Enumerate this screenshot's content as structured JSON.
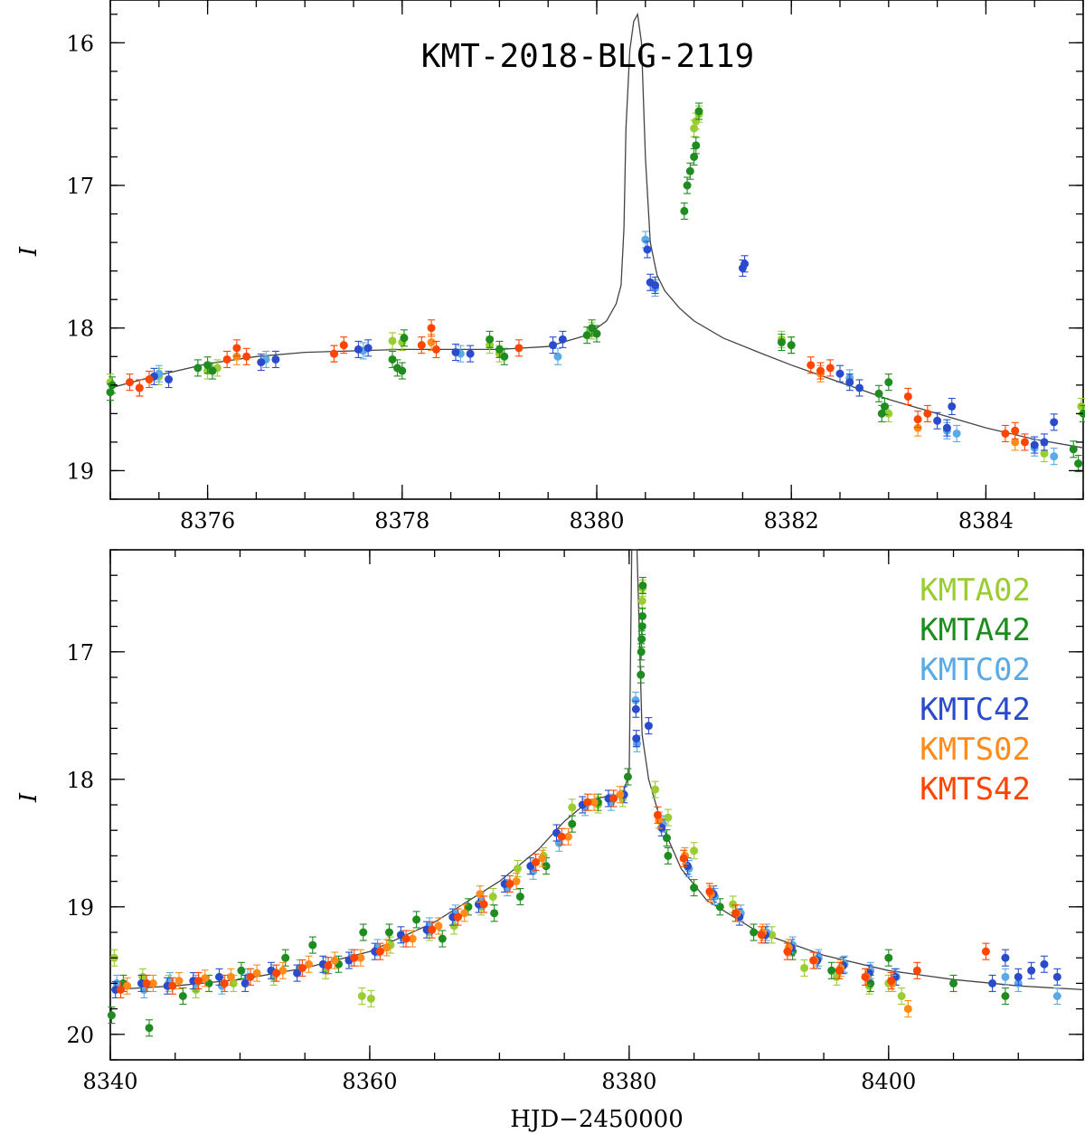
{
  "chart_data": [
    {
      "type": "scatter",
      "title": "KMT-2018-BLG-2119",
      "xlabel": "",
      "ylabel": "I",
      "xlim": [
        8375,
        8385
      ],
      "ylim": [
        19.2,
        15.7
      ],
      "x_ticks": [
        "8376",
        "8378",
        "8380",
        "8382",
        "8384"
      ],
      "y_ticks": [
        "16",
        "17",
        "18",
        "19"
      ],
      "x_tick_values": [
        8376,
        8378,
        8380,
        8382,
        8384
      ],
      "y_tick_values": [
        16,
        17,
        18,
        19
      ],
      "model": {
        "label": "model light curve",
        "x": [
          8375.0,
          8375.5,
          8376.0,
          8376.5,
          8377.0,
          8377.5,
          8378.0,
          8378.5,
          8379.0,
          8379.5,
          8379.9,
          8380.1,
          8380.2,
          8380.25,
          8380.28,
          8380.3,
          8380.34,
          8380.38,
          8380.42,
          8380.46,
          8380.5,
          8380.55,
          8380.62,
          8380.7,
          8380.85,
          8381.0,
          8381.3,
          8381.7,
          8382.0,
          8382.5,
          8383.0,
          8383.5,
          8384.0,
          8384.5,
          8385.0
        ],
        "y": [
          18.42,
          18.33,
          18.25,
          18.2,
          18.17,
          18.16,
          18.15,
          18.15,
          18.15,
          18.13,
          18.05,
          17.95,
          17.83,
          17.7,
          17.3,
          16.6,
          16.05,
          15.85,
          15.8,
          16.0,
          16.8,
          17.4,
          17.63,
          17.74,
          17.86,
          17.95,
          18.07,
          18.18,
          18.26,
          18.38,
          18.5,
          18.6,
          18.7,
          18.78,
          18.84
        ]
      },
      "series": [
        {
          "name": "KMTA02",
          "color": "#9acd32",
          "x": [
            8375.0,
            8375.5,
            8376.0,
            8376.1,
            8377.9,
            8378.0,
            8378.9,
            8379.0,
            8379.95,
            8381.0,
            8381.02,
            8381.05,
            8381.9,
            8382.0,
            8383.0,
            8384.6,
            8384.98
          ],
          "y": [
            18.38,
            18.34,
            18.3,
            18.28,
            18.09,
            18.1,
            18.12,
            18.18,
            18.02,
            16.6,
            16.55,
            16.5,
            18.08,
            18.12,
            18.6,
            18.88,
            18.55
          ]
        },
        {
          "name": "KMTA42",
          "color": "#1e8c1e",
          "x": [
            8375.0,
            8375.02,
            8375.9,
            8376.0,
            8376.05,
            8377.9,
            8377.95,
            8378.0,
            8378.02,
            8378.9,
            8379.0,
            8379.05,
            8379.9,
            8379.95,
            8380.0,
            8380.9,
            8380.93,
            8380.96,
            8381.0,
            8381.02,
            8381.05,
            8381.9,
            8382.0,
            8382.9,
            8382.93,
            8382.96,
            8383.0,
            8384.9,
            8384.95,
            8385.0
          ],
          "y": [
            18.45,
            18.4,
            18.28,
            18.26,
            18.3,
            18.22,
            18.28,
            18.3,
            18.07,
            18.08,
            18.15,
            18.2,
            18.05,
            18.0,
            18.04,
            17.18,
            17.0,
            16.9,
            16.8,
            16.72,
            16.48,
            18.1,
            18.12,
            18.46,
            18.6,
            18.55,
            18.38,
            18.85,
            18.95,
            18.6
          ]
        },
        {
          "name": "KMTC02",
          "color": "#5aaae6",
          "x": [
            8375.5,
            8376.6,
            8377.6,
            8378.6,
            8379.6,
            8380.5,
            8380.6,
            8382.6,
            8383.6,
            8383.7,
            8384.5,
            8384.7
          ],
          "y": [
            18.32,
            18.22,
            18.16,
            18.18,
            18.2,
            17.38,
            17.72,
            18.35,
            18.72,
            18.74,
            18.84,
            18.9
          ]
        },
        {
          "name": "KMTC42",
          "color": "#2a4ccc",
          "x": [
            8375.45,
            8375.6,
            8376.55,
            8376.7,
            8377.55,
            8377.65,
            8378.55,
            8378.7,
            8379.55,
            8379.65,
            8380.52,
            8380.55,
            8380.6,
            8381.5,
            8381.52,
            8382.5,
            8382.6,
            8382.7,
            8383.5,
            8383.6,
            8383.65,
            8384.5,
            8384.6,
            8384.7
          ],
          "y": [
            18.34,
            18.36,
            18.24,
            18.22,
            18.15,
            18.14,
            18.17,
            18.18,
            18.12,
            18.08,
            17.45,
            17.68,
            17.7,
            17.58,
            17.55,
            18.32,
            18.38,
            18.42,
            18.65,
            18.7,
            18.55,
            18.82,
            18.8,
            18.66
          ]
        },
        {
          "name": "KMTS02",
          "color": "#ff8c1a",
          "x": [
            8375.3,
            8376.3,
            8377.3,
            8378.3,
            8382.3,
            8383.3,
            8384.3
          ],
          "y": [
            18.42,
            18.2,
            18.18,
            18.1,
            18.32,
            18.7,
            18.8
          ]
        },
        {
          "name": "KMTS42",
          "color": "#ff4500",
          "x": [
            8375.2,
            8375.3,
            8375.4,
            8376.2,
            8376.3,
            8376.4,
            8377.3,
            8377.4,
            8378.2,
            8378.3,
            8378.35,
            8379.2,
            8382.2,
            8382.3,
            8382.4,
            8383.2,
            8383.3,
            8383.4,
            8384.2,
            8384.3,
            8384.4
          ],
          "y": [
            18.38,
            18.42,
            18.36,
            18.22,
            18.14,
            18.2,
            18.18,
            18.12,
            18.12,
            18.0,
            18.15,
            18.14,
            18.26,
            18.3,
            18.28,
            18.48,
            18.64,
            18.6,
            18.74,
            18.72,
            18.8
          ]
        }
      ]
    },
    {
      "type": "scatter",
      "title": "",
      "xlabel": "HJD−2450000",
      "ylabel": "I",
      "xlim": [
        8340,
        8415
      ],
      "ylim": [
        20.2,
        16.2
      ],
      "x_ticks": [
        "8340",
        "8360",
        "8380",
        "8400"
      ],
      "y_ticks": [
        "17",
        "18",
        "19",
        "20"
      ],
      "x_tick_values": [
        8340,
        8360,
        8380,
        8400
      ],
      "y_tick_values": [
        17,
        18,
        19,
        20
      ],
      "model": {
        "label": "model light curve",
        "x": [
          8340,
          8345,
          8350,
          8355,
          8360,
          8365,
          8370,
          8373,
          8375,
          8377,
          8378.5,
          8379.5,
          8380.0,
          8380.2,
          8380.4,
          8380.6,
          8380.8,
          8381.0,
          8381.5,
          8382.5,
          8384,
          8386,
          8390,
          8395,
          8400,
          8405,
          8410,
          8415
        ],
        "y": [
          19.65,
          19.62,
          19.57,
          19.48,
          19.35,
          19.12,
          18.8,
          18.55,
          18.33,
          18.16,
          18.13,
          18.12,
          17.95,
          16.2,
          16.2,
          16.2,
          16.9,
          17.65,
          18.0,
          18.35,
          18.7,
          18.95,
          19.2,
          19.38,
          19.5,
          19.57,
          19.62,
          19.65
        ]
      },
      "series": [
        {
          "name": "KMTA02",
          "color": "#9acd32",
          "x": [
            8340.3,
            8342.5,
            8344.5,
            8346.6,
            8349.5,
            8352.6,
            8354.6,
            8356.6,
            8359.4,
            8360.1,
            8361.6,
            8364.6,
            8366.5,
            8368.6,
            8369.5,
            8371.4,
            8373.4,
            8375.6,
            8377.6,
            8379.5,
            8381.0,
            8381.03,
            8382.0,
            8383.0,
            8385.0,
            8388.0,
            8391.0,
            8393.5,
            8396.0,
            8398.5,
            8400.0,
            8401.0
          ],
          "y": [
            19.4,
            19.55,
            19.6,
            19.65,
            19.6,
            19.55,
            19.48,
            19.5,
            19.7,
            19.72,
            19.3,
            19.2,
            19.15,
            19.0,
            18.92,
            18.7,
            18.6,
            18.22,
            18.2,
            18.15,
            16.6,
            16.5,
            18.08,
            18.3,
            18.56,
            18.98,
            19.22,
            19.48,
            19.55,
            19.62,
            19.6,
            19.7
          ]
        },
        {
          "name": "KMTA42",
          "color": "#1e8c1e",
          "x": [
            8340.1,
            8341.0,
            8343.0,
            8345.6,
            8347.6,
            8350.1,
            8353.5,
            8355.6,
            8357.6,
            8359.5,
            8361.5,
            8363.6,
            8365.6,
            8367.6,
            8369.6,
            8371.6,
            8373.6,
            8375.6,
            8377.6,
            8379.9,
            8380.9,
            8380.93,
            8380.96,
            8381.0,
            8381.02,
            8381.05,
            8382.9,
            8383.0,
            8385.0,
            8387.0,
            8389.6,
            8392.6,
            8395.6,
            8398.6,
            8400.0,
            8405.0,
            8409.0
          ],
          "y": [
            19.85,
            19.6,
            19.95,
            19.7,
            19.6,
            19.5,
            19.4,
            19.3,
            19.45,
            19.2,
            19.2,
            19.1,
            19.25,
            19.0,
            19.05,
            18.92,
            18.68,
            18.35,
            18.18,
            17.98,
            17.18,
            17.0,
            16.9,
            16.8,
            16.72,
            16.48,
            18.46,
            18.6,
            18.85,
            19.0,
            19.2,
            19.35,
            19.5,
            19.6,
            19.4,
            19.6,
            19.7
          ]
        },
        {
          "name": "KMTC02",
          "color": "#5aaae6",
          "x": [
            8340.5,
            8342.6,
            8344.6,
            8346.6,
            8348.6,
            8350.6,
            8352.6,
            8354.6,
            8356.6,
            8358.6,
            8360.6,
            8362.6,
            8364.6,
            8366.6,
            8368.6,
            8370.6,
            8372.6,
            8374.6,
            8376.6,
            8378.6,
            8380.5,
            8380.6,
            8382.6,
            8384.6,
            8386.6,
            8388.6,
            8390.6,
            8392.6,
            8394.6,
            8396.6,
            8398.6,
            8400.6,
            8409.0,
            8410.0,
            8413.0
          ],
          "y": [
            19.6,
            19.65,
            19.58,
            19.6,
            19.62,
            19.55,
            19.52,
            19.48,
            19.46,
            19.4,
            19.32,
            19.25,
            19.15,
            19.05,
            18.95,
            18.85,
            18.72,
            18.5,
            18.22,
            18.18,
            17.38,
            17.72,
            18.35,
            18.7,
            18.92,
            19.05,
            19.2,
            19.3,
            19.4,
            19.45,
            19.5,
            19.55,
            19.55,
            19.6,
            19.7
          ]
        },
        {
          "name": "KMTC42",
          "color": "#2a4ccc",
          "x": [
            8340.4,
            8342.4,
            8344.4,
            8346.4,
            8348.4,
            8350.4,
            8352.4,
            8354.4,
            8356.4,
            8358.4,
            8360.4,
            8362.4,
            8364.4,
            8366.4,
            8368.4,
            8370.4,
            8372.4,
            8374.4,
            8376.4,
            8378.4,
            8379.6,
            8380.52,
            8380.55,
            8381.5,
            8382.5,
            8384.5,
            8386.5,
            8388.5,
            8390.5,
            8392.5,
            8394.5,
            8396.5,
            8398.5,
            8400.5,
            8408.0,
            8409.0,
            8410.0,
            8411.0,
            8412.0,
            8413.0
          ],
          "y": [
            19.65,
            19.6,
            19.62,
            19.58,
            19.55,
            19.6,
            19.5,
            19.52,
            19.45,
            19.42,
            19.35,
            19.22,
            19.18,
            19.08,
            18.98,
            18.82,
            18.68,
            18.42,
            18.2,
            18.15,
            18.12,
            17.45,
            17.68,
            17.58,
            18.38,
            18.68,
            18.9,
            19.08,
            19.22,
            19.32,
            19.42,
            19.46,
            19.52,
            19.55,
            19.6,
            19.4,
            19.55,
            19.5,
            19.45,
            19.55
          ]
        },
        {
          "name": "KMTS02",
          "color": "#ff8c1a",
          "x": [
            8341.3,
            8343.3,
            8345.3,
            8347.3,
            8349.3,
            8351.3,
            8353.3,
            8355.3,
            8357.3,
            8359.3,
            8361.3,
            8363.3,
            8365.3,
            8367.3,
            8368.5,
            8371.3,
            8373.3,
            8375.3,
            8377.3,
            8379.3,
            8382.3,
            8384.3,
            8386.3,
            8388.3,
            8390.3,
            8392.3,
            8394.3,
            8396.3,
            8398.3,
            8400.3,
            8401.5
          ],
          "y": [
            19.62,
            19.6,
            19.58,
            19.56,
            19.55,
            19.52,
            19.5,
            19.45,
            19.42,
            19.4,
            19.32,
            19.25,
            19.15,
            19.05,
            18.9,
            18.8,
            18.62,
            18.45,
            18.18,
            18.12,
            18.32,
            18.6,
            18.9,
            19.05,
            19.2,
            19.32,
            19.42,
            19.48,
            19.55,
            19.6,
            19.8
          ]
        },
        {
          "name": "KMTS42",
          "color": "#ff4500",
          "x": [
            8340.8,
            8342.8,
            8344.8,
            8346.8,
            8348.8,
            8350.8,
            8352.8,
            8354.8,
            8356.8,
            8358.8,
            8360.8,
            8362.8,
            8364.8,
            8366.8,
            8368.8,
            8370.8,
            8372.8,
            8374.8,
            8376.8,
            8378.8,
            8382.2,
            8384.2,
            8386.2,
            8388.2,
            8390.2,
            8392.2,
            8394.2,
            8396.2,
            8398.2,
            8400.2,
            8402.2,
            8407.5
          ],
          "y": [
            19.65,
            19.6,
            19.62,
            19.58,
            19.6,
            19.55,
            19.52,
            19.48,
            19.46,
            19.4,
            19.35,
            19.25,
            19.18,
            19.08,
            18.98,
            18.82,
            18.65,
            18.45,
            18.18,
            18.15,
            18.28,
            18.62,
            18.88,
            19.05,
            19.22,
            19.35,
            19.42,
            19.5,
            19.55,
            19.58,
            19.5,
            19.35
          ]
        }
      ],
      "legend": {
        "placement": "top-right",
        "entries": [
          {
            "label": "KMTA02",
            "color": "#9acd32"
          },
          {
            "label": "KMTA42",
            "color": "#1e8c1e"
          },
          {
            "label": "KMTC02",
            "color": "#5aaae6"
          },
          {
            "label": "KMTC42",
            "color": "#2a4ccc"
          },
          {
            "label": "KMTS02",
            "color": "#ff8c1a"
          },
          {
            "label": "KMTS42",
            "color": "#ff4500"
          }
        ]
      }
    }
  ]
}
